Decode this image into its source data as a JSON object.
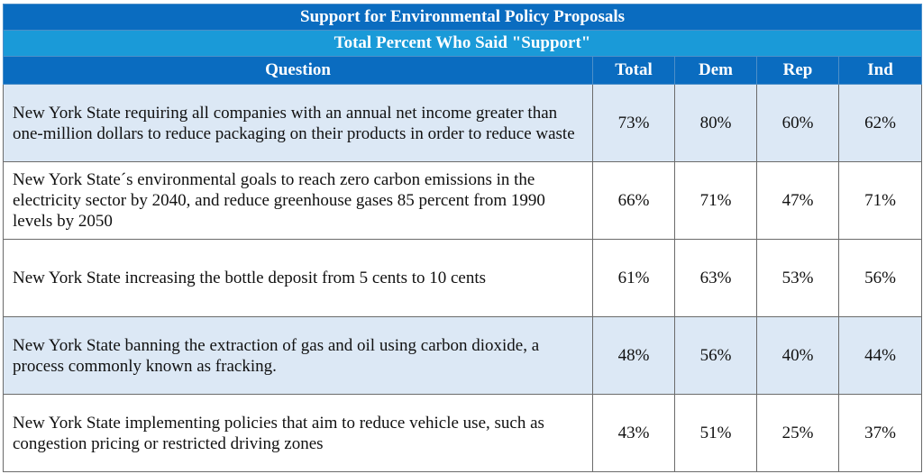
{
  "chart_data": {
    "type": "table",
    "title": "Support for Environmental Policy Proposals",
    "subtitle": "Total Percent Who Said \"Support\"",
    "columns": [
      "Question",
      "Total",
      "Dem",
      "Rep",
      "Ind"
    ],
    "rows": [
      {
        "question": "New York State requiring all companies with an annual net income greater than one-million dollars to reduce packaging on their products in order to reduce waste",
        "values": [
          "73%",
          "80%",
          "60%",
          "62%"
        ]
      },
      {
        "question": "New York State´s environmental goals to reach zero carbon emissions in the electricity sector by 2040, and reduce greenhouse gases 85 percent from 1990 levels by 2050",
        "values": [
          "66%",
          "71%",
          "47%",
          "71%"
        ]
      },
      {
        "question": "New York State increasing the bottle deposit from 5 cents to 10 cents",
        "values": [
          "61%",
          "63%",
          "53%",
          "56%"
        ]
      },
      {
        "question": "New York State banning the extraction of gas and oil using carbon dioxide, a process commonly known as fracking.",
        "values": [
          "48%",
          "56%",
          "40%",
          "44%"
        ]
      },
      {
        "question": "New York State implementing policies that aim to reduce vehicle use, such as congestion pricing or restricted driving zones",
        "values": [
          "43%",
          "51%",
          "25%",
          "37%"
        ]
      }
    ]
  },
  "colors": {
    "header_dark": "#0a6cc0",
    "header_light": "#1a9ad8",
    "row_shade": "#dce8f5"
  }
}
